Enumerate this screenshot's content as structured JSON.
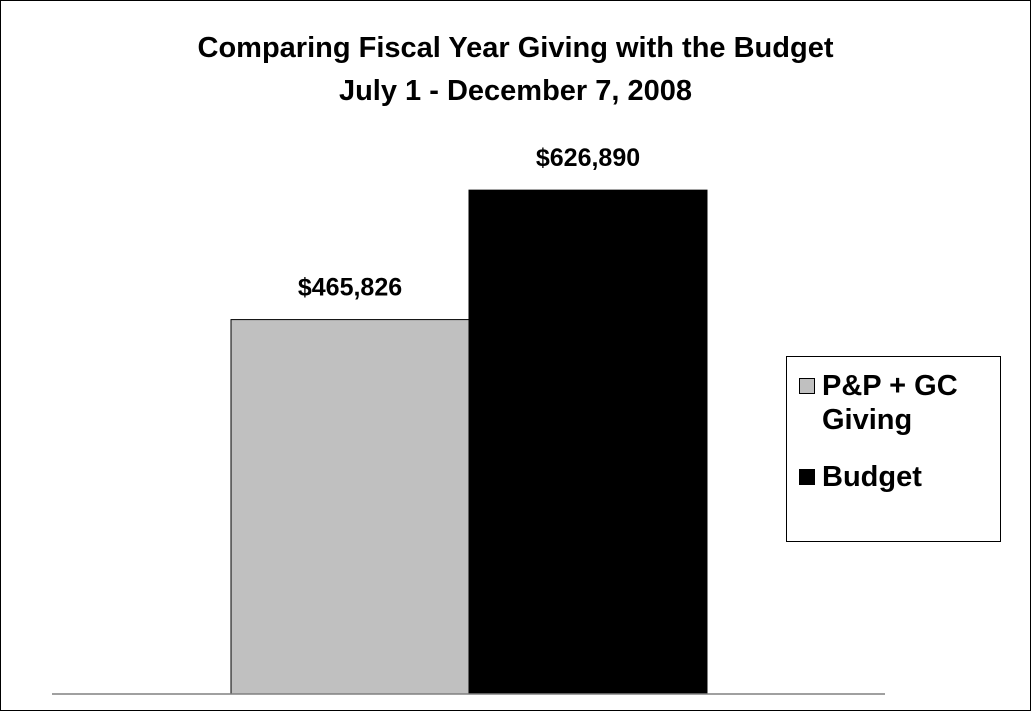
{
  "chart_data": {
    "type": "bar",
    "title": "Comparing Fiscal Year Giving with the Budget",
    "subtitle": "July 1 - December 7, 2008",
    "categories": [
      ""
    ],
    "series": [
      {
        "name": "P&P + GC Giving",
        "values": [
          465826
        ],
        "label": "$465,826",
        "color": "#c0c0c0"
      },
      {
        "name": "Budget",
        "values": [
          626890
        ],
        "label": "$626,890",
        "color": "#000000"
      }
    ],
    "ylim": [
      0,
      800000
    ],
    "grid": false,
    "legend_position": "right"
  }
}
